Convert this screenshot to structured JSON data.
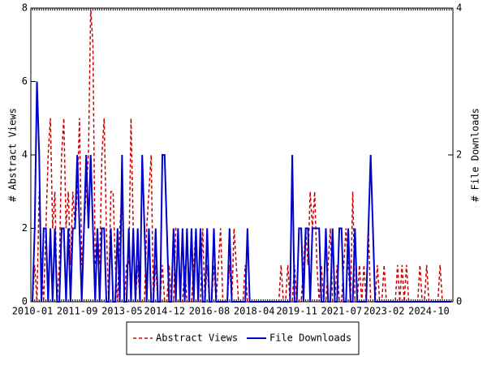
{
  "chart_data": {
    "type": "line",
    "ylabel": "# Abstract Views",
    "y2label": "# File Downloads",
    "categories": [
      "2010-01",
      null,
      null,
      null,
      null,
      null,
      null,
      null,
      null,
      null,
      null,
      null,
      null,
      null,
      null,
      null,
      null,
      null,
      null,
      null,
      "2011-09",
      null,
      null,
      null,
      null,
      null,
      null,
      null,
      null,
      null,
      null,
      null,
      null,
      null,
      null,
      null,
      null,
      null,
      null,
      null,
      "2013-05",
      null,
      null,
      null,
      null,
      null,
      null,
      null,
      null,
      null,
      null,
      null,
      null,
      null,
      null,
      null,
      null,
      null,
      null,
      "2014-12",
      null,
      null,
      null,
      null,
      null,
      null,
      null,
      null,
      null,
      null,
      null,
      null,
      null,
      null,
      null,
      null,
      null,
      null,
      null,
      "2016-08",
      null,
      null,
      null,
      null,
      null,
      null,
      null,
      null,
      null,
      null,
      null,
      null,
      null,
      null,
      null,
      null,
      null,
      null,
      null,
      "2018-04",
      null,
      null,
      null,
      null,
      null,
      null,
      null,
      null,
      null,
      null,
      null,
      null,
      null,
      null,
      null,
      null,
      null,
      null,
      "2019-11",
      null,
      null,
      null,
      null,
      null,
      null,
      null,
      null,
      null,
      null,
      null,
      null,
      null,
      null,
      null,
      null,
      null,
      null,
      null,
      "2021-07",
      null,
      null,
      null,
      null,
      null,
      null,
      null,
      null,
      null,
      null,
      null,
      null,
      null,
      null,
      null,
      null,
      null,
      null,
      "2023-02",
      null,
      null,
      null,
      null,
      null,
      null,
      null,
      null,
      null,
      null,
      null,
      null,
      null,
      null,
      null,
      null,
      null,
      null,
      null,
      "2024-10",
      null,
      null,
      null,
      null,
      null,
      null,
      null,
      null,
      null,
      null
    ],
    "series": [
      {
        "name": "Abstract Views",
        "color": "#cc0000",
        "dash": true,
        "values": [
          0,
          1,
          0,
          3,
          1,
          0,
          2,
          4,
          5,
          2,
          3,
          0,
          1,
          4,
          5,
          2,
          3,
          1,
          3,
          2,
          3,
          5,
          1,
          2,
          3,
          4,
          8,
          7,
          1,
          2,
          1,
          4,
          5,
          2,
          0,
          3,
          3,
          1,
          0,
          2,
          3,
          0,
          1,
          1,
          5,
          2,
          0,
          1,
          0,
          0,
          0,
          2,
          3,
          4,
          0,
          1,
          0,
          0,
          1,
          0,
          0,
          1,
          0,
          0,
          2,
          2,
          0,
          0,
          1,
          0,
          0,
          0,
          1,
          2,
          0,
          0,
          2,
          0,
          1,
          0,
          0,
          1,
          0,
          1,
          2,
          0,
          0,
          0,
          1,
          0,
          2,
          1,
          0,
          0,
          0,
          1,
          0,
          0,
          0,
          0,
          0,
          0,
          0,
          0,
          0,
          0,
          0,
          0,
          0,
          0,
          0,
          1,
          0,
          0,
          1,
          0,
          0,
          1,
          0,
          0,
          0,
          1,
          2,
          1,
          3,
          2,
          3,
          1,
          0,
          1,
          0,
          0,
          1,
          2,
          0,
          0,
          1,
          0,
          0,
          1,
          2,
          1,
          0,
          3,
          0,
          0,
          1,
          0,
          1,
          0,
          2,
          0,
          0,
          0,
          1,
          0,
          0,
          1,
          0,
          0,
          0,
          0,
          0,
          1,
          0,
          1,
          0,
          1,
          0,
          0,
          0,
          0,
          0,
          1,
          0,
          0,
          1,
          0,
          0,
          0,
          0,
          0,
          1,
          0,
          0,
          0,
          0,
          0
        ]
      },
      {
        "name": "File Downloads",
        "color": "#0000cc",
        "axis": "y2",
        "values": [
          0,
          1,
          3,
          2,
          0,
          1,
          1,
          0,
          1,
          0,
          1,
          0,
          0,
          1,
          1,
          0,
          1,
          0,
          1,
          1,
          2,
          1,
          0,
          1,
          2,
          1,
          2,
          1,
          0,
          1,
          0,
          1,
          1,
          0,
          0,
          1,
          0,
          0,
          1,
          0,
          2,
          0,
          0,
          1,
          0,
          1,
          0,
          1,
          0,
          2,
          1,
          0,
          1,
          0,
          0,
          1,
          0,
          0,
          2,
          2,
          1,
          0,
          0,
          1,
          0,
          1,
          0,
          1,
          0,
          1,
          0,
          1,
          0,
          1,
          0,
          1,
          0,
          0,
          1,
          0,
          0,
          1,
          0,
          0,
          0,
          0,
          0,
          0,
          1,
          0,
          0,
          0,
          0,
          0,
          0,
          0,
          1,
          0,
          0,
          0,
          0,
          0,
          0,
          0,
          0,
          0,
          0,
          0,
          0,
          0,
          0,
          0,
          0,
          0,
          0,
          0,
          2,
          0,
          0,
          1,
          1,
          0,
          1,
          1,
          0,
          1,
          1,
          1,
          1,
          0,
          0,
          1,
          0,
          0,
          1,
          0,
          0,
          1,
          1,
          0,
          0,
          1,
          0,
          0,
          1,
          0,
          0,
          0,
          0,
          0,
          1,
          2,
          1,
          0,
          0,
          0,
          0,
          0,
          0,
          0,
          0,
          0,
          0,
          0,
          0,
          0,
          0,
          0,
          0,
          0,
          0,
          0,
          0,
          0,
          0,
          0,
          0,
          0,
          0,
          0,
          0,
          0,
          0,
          0,
          0,
          0,
          0,
          0
        ]
      }
    ],
    "ylim": [
      0,
      8
    ],
    "yticks": [
      0,
      2,
      4,
      6,
      8
    ],
    "y2lim": [
      0,
      4
    ],
    "y2ticks": [
      0,
      2,
      4
    ],
    "legend": "bottom"
  }
}
